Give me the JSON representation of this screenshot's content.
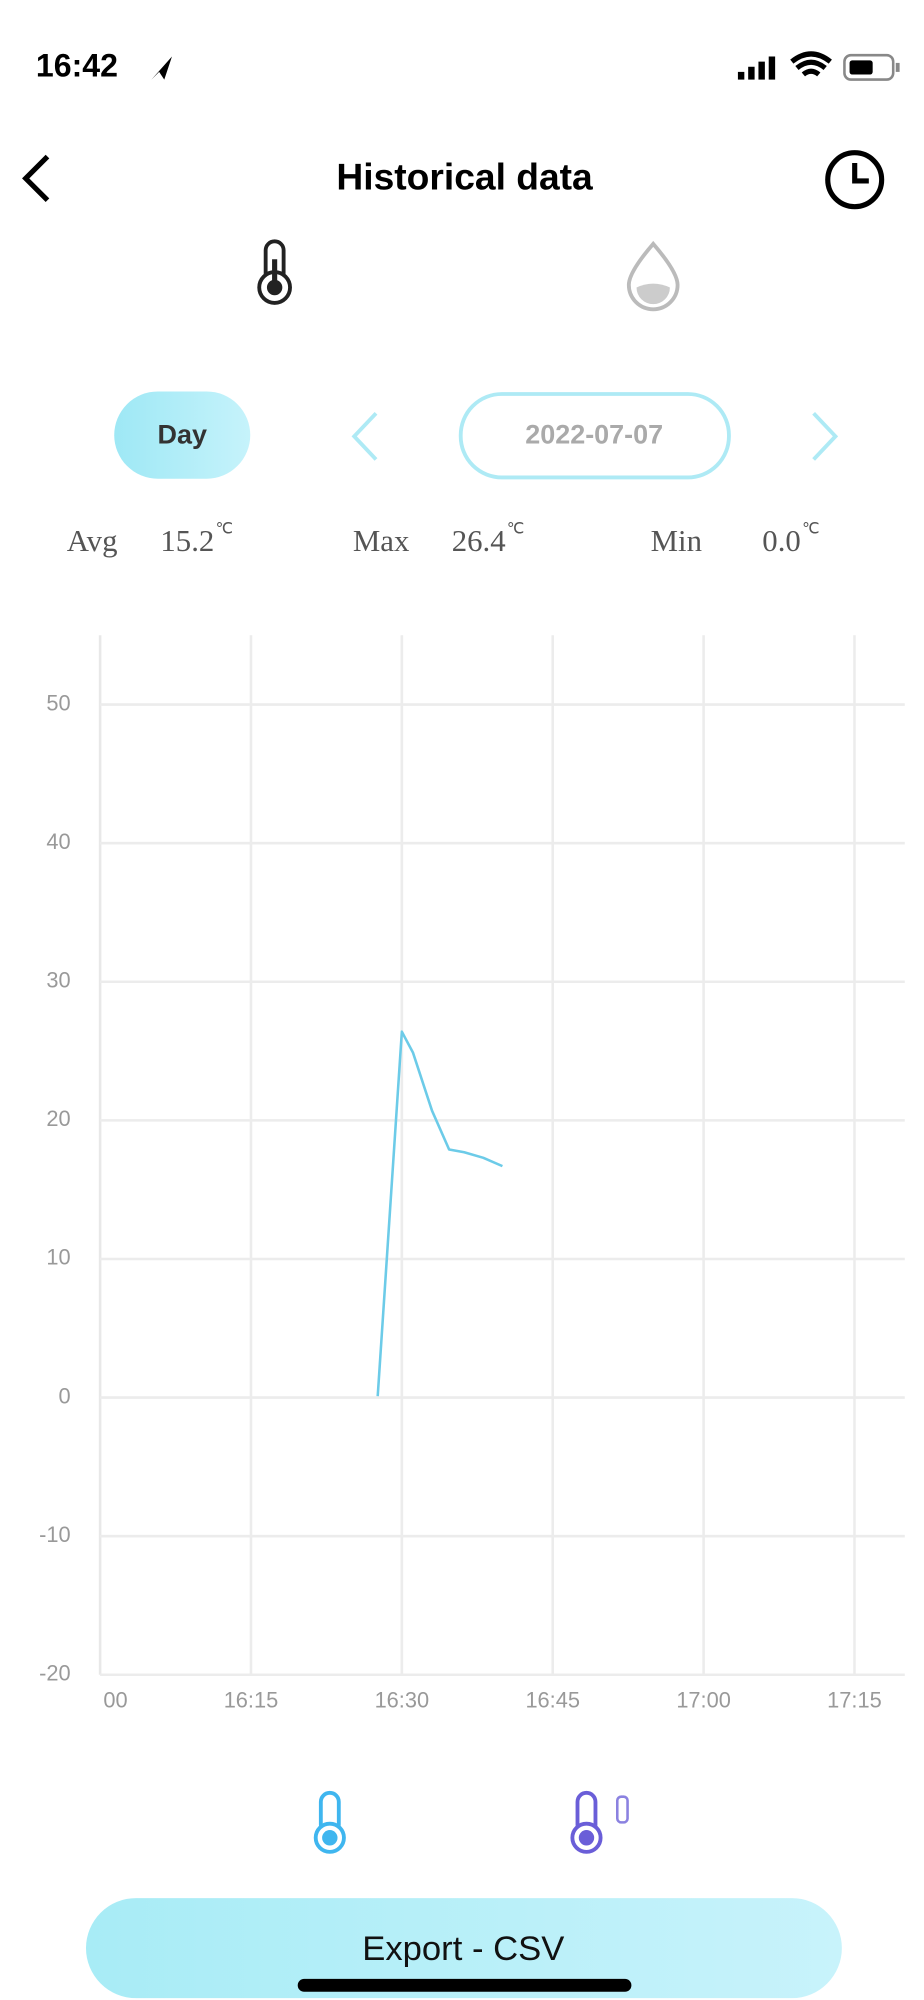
{
  "status_bar": {
    "time": "16:42"
  },
  "header": {
    "title": "Historical data"
  },
  "period": {
    "button": "Day",
    "date": "2022-07-07"
  },
  "stats": [
    {
      "label": "Avg",
      "value": "15.2",
      "unit": "℃"
    },
    {
      "label": "Max",
      "value": "26.4",
      "unit": "℃"
    },
    {
      "label": "Min",
      "value": "0.0",
      "unit": "℃"
    }
  ],
  "chart_data": {
    "type": "line",
    "x": [
      987.6,
      990,
      991.1,
      993,
      994.7,
      996.2,
      998.1,
      1000
    ],
    "series": [
      {
        "color": "#6ccbe8",
        "values": [
          0.1,
          26.4,
          24.9,
          20.7,
          17.9,
          17.7,
          17.3,
          16.7
        ]
      }
    ],
    "xlim": [
      960,
      1040
    ],
    "xticks": [
      {
        "value": 960,
        "label": "00"
      },
      {
        "value": 975,
        "label": "16:15"
      },
      {
        "value": 990,
        "label": "16:30"
      },
      {
        "value": 1005,
        "label": "16:45"
      },
      {
        "value": 1020,
        "label": "17:00"
      },
      {
        "value": 1035,
        "label": "17:15"
      }
    ],
    "ylim": [
      -20,
      55
    ],
    "yticks": [
      -20,
      -10,
      0,
      10,
      20,
      30,
      40,
      50
    ],
    "grid": true
  },
  "export_button": "Export - CSV"
}
